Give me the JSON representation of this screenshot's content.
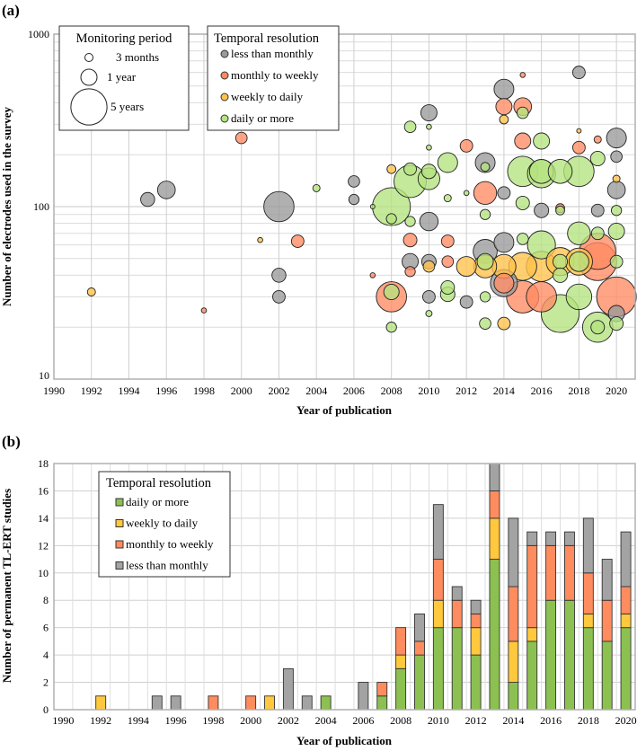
{
  "chart_data": [
    {
      "panel": "(a)",
      "type": "scatter",
      "subtype": "bubble",
      "xlabel": "Year of publication",
      "ylabel": "Number of electrodes used in the survey",
      "xlim": [
        1990,
        2021
      ],
      "ylim": [
        10,
        1000
      ],
      "yscale": "log",
      "xticks": [
        1990,
        1992,
        1994,
        1996,
        1998,
        2000,
        2002,
        2004,
        2006,
        2008,
        2010,
        2012,
        2014,
        2016,
        2018,
        2020
      ],
      "yticks": [
        10,
        100,
        1000
      ],
      "grid": true,
      "size_legend": {
        "title": "Monitoring period",
        "entries": [
          {
            "label": "3 months",
            "years": 0.25
          },
          {
            "label": "1 year",
            "years": 1
          },
          {
            "label": "5 years",
            "years": 5
          }
        ]
      },
      "color_legend": {
        "title": "Temporal resolution",
        "entries": [
          {
            "key": "L",
            "label": "less than monthly",
            "color": "#9a9a9a"
          },
          {
            "key": "M",
            "label": "monthly to weekly",
            "color": "#ff8a63"
          },
          {
            "key": "W",
            "label": "weekly to daily",
            "color": "#ffc24a"
          },
          {
            "key": "D",
            "label": "daily or more",
            "color": "#b5e37f"
          }
        ]
      },
      "point_fields": [
        "year",
        "electrodes",
        "monitoring_years",
        "resolution"
      ],
      "points": [
        [
          1992,
          32,
          0.25,
          "W"
        ],
        [
          1995,
          110,
          0.75,
          "L"
        ],
        [
          1996,
          125,
          1.2,
          "L"
        ],
        [
          1998,
          25,
          0.1,
          "M"
        ],
        [
          2000,
          250,
          0.5,
          "M"
        ],
        [
          2001,
          64,
          0.1,
          "W"
        ],
        [
          2002,
          100,
          3.5,
          "L"
        ],
        [
          2002,
          40,
          0.75,
          "L"
        ],
        [
          2002,
          30,
          0.6,
          "L"
        ],
        [
          2003,
          63,
          0.6,
          "M"
        ],
        [
          2004,
          128,
          0.2,
          "D"
        ],
        [
          2006,
          140,
          0.5,
          "L"
        ],
        [
          2006,
          110,
          0.4,
          "L"
        ],
        [
          2007,
          40,
          0.1,
          "M"
        ],
        [
          2007,
          100,
          0.05,
          "D"
        ],
        [
          2008,
          100,
          5.5,
          "D"
        ],
        [
          2008,
          165,
          0.3,
          "W"
        ],
        [
          2008,
          85,
          0.4,
          "D"
        ],
        [
          2008,
          30,
          3.5,
          "M"
        ],
        [
          2008,
          32,
          0.9,
          "D"
        ],
        [
          2008,
          20,
          0.4,
          "D"
        ],
        [
          2009,
          290,
          0.5,
          "D"
        ],
        [
          2009,
          165,
          0.6,
          "D"
        ],
        [
          2009,
          140,
          4,
          "D"
        ],
        [
          2009,
          82,
          0.4,
          "D"
        ],
        [
          2009,
          64,
          0.7,
          "M"
        ],
        [
          2009,
          48,
          1,
          "L"
        ],
        [
          2009,
          42,
          0.4,
          "M"
        ],
        [
          2010,
          350,
          1,
          "L"
        ],
        [
          2010,
          290,
          0.1,
          "D"
        ],
        [
          2010,
          220,
          0.1,
          "D"
        ],
        [
          2010,
          160,
          0.8,
          "D"
        ],
        [
          2010,
          145,
          1.8,
          "D"
        ],
        [
          2010,
          82,
          1.3,
          "L"
        ],
        [
          2010,
          48,
          0.8,
          "L"
        ],
        [
          2010,
          45,
          0.5,
          "W"
        ],
        [
          2010,
          30,
          0.6,
          "L"
        ],
        [
          2010,
          24,
          0.15,
          "D"
        ],
        [
          2011,
          180,
          1.5,
          "D"
        ],
        [
          2011,
          112,
          0.2,
          "D"
        ],
        [
          2011,
          63,
          0.6,
          "M"
        ],
        [
          2011,
          48,
          0.5,
          "M"
        ],
        [
          2011,
          34,
          0.7,
          "D"
        ],
        [
          2011,
          31,
          0.8,
          "D"
        ],
        [
          2012,
          225,
          0.6,
          "M"
        ],
        [
          2012,
          120,
          0.1,
          "D"
        ],
        [
          2012,
          45,
          1.5,
          "W"
        ],
        [
          2012,
          28,
          0.6,
          "L"
        ],
        [
          2013,
          180,
          1.5,
          "L"
        ],
        [
          2013,
          170,
          0.3,
          "D"
        ],
        [
          2013,
          120,
          2,
          "M"
        ],
        [
          2013,
          90,
          0.4,
          "D"
        ],
        [
          2013,
          55,
          2.2,
          "L"
        ],
        [
          2013,
          45,
          2,
          "W"
        ],
        [
          2013,
          48,
          1,
          "D"
        ],
        [
          2013,
          30,
          0.4,
          "D"
        ],
        [
          2013,
          21,
          0.5,
          "D"
        ],
        [
          2014,
          480,
          1.5,
          "L"
        ],
        [
          2014,
          380,
          1,
          "M"
        ],
        [
          2014,
          320,
          0.3,
          "W"
        ],
        [
          2014,
          120,
          0.6,
          "L"
        ],
        [
          2014,
          62,
          1.5,
          "L"
        ],
        [
          2014,
          45,
          2.2,
          "W"
        ],
        [
          2014,
          36,
          2.8,
          "L"
        ],
        [
          2014,
          36,
          1.5,
          "M"
        ],
        [
          2014,
          21,
          0.6,
          "W"
        ],
        [
          2015,
          580,
          0.1,
          "M"
        ],
        [
          2015,
          380,
          1.2,
          "M"
        ],
        [
          2015,
          350,
          0.5,
          "D"
        ],
        [
          2015,
          240,
          1,
          "M"
        ],
        [
          2015,
          160,
          3.5,
          "D"
        ],
        [
          2015,
          105,
          0.7,
          "D"
        ],
        [
          2015,
          65,
          0.5,
          "D"
        ],
        [
          2015,
          45,
          3,
          "W"
        ],
        [
          2015,
          30,
          4,
          "M"
        ],
        [
          2016,
          240,
          1,
          "D"
        ],
        [
          2016,
          160,
          2.2,
          "D"
        ],
        [
          2016,
          155,
          3,
          "D"
        ],
        [
          2016,
          95,
          0.8,
          "L"
        ],
        [
          2016,
          60,
          3,
          "D"
        ],
        [
          2016,
          45,
          3.5,
          "W"
        ],
        [
          2016,
          30,
          3.5,
          "M"
        ],
        [
          2017,
          160,
          2.2,
          "D"
        ],
        [
          2017,
          98,
          0.3,
          "M"
        ],
        [
          2017,
          95,
          0.3,
          "D"
        ],
        [
          2017,
          48,
          3,
          "W"
        ],
        [
          2017,
          48,
          0.8,
          "D"
        ],
        [
          2017,
          40,
          0.8,
          "D"
        ],
        [
          2017,
          24,
          5.5,
          "D"
        ],
        [
          2018,
          600,
          0.6,
          "L"
        ],
        [
          2018,
          275,
          0.05,
          "W"
        ],
        [
          2018,
          220,
          0.6,
          "M"
        ],
        [
          2018,
          160,
          3.5,
          "D"
        ],
        [
          2018,
          70,
          2,
          "D"
        ],
        [
          2018,
          48,
          2.8,
          "W"
        ],
        [
          2018,
          48,
          1.5,
          "D"
        ],
        [
          2018,
          30,
          2.5,
          "D"
        ],
        [
          2019,
          245,
          0.2,
          "M"
        ],
        [
          2019,
          190,
          0.8,
          "D"
        ],
        [
          2019,
          95,
          0.6,
          "L"
        ],
        [
          2019,
          70,
          0.6,
          "D"
        ],
        [
          2019,
          55,
          5,
          "M"
        ],
        [
          2019,
          48,
          5.5,
          "M"
        ],
        [
          2019,
          20,
          3.5,
          "D"
        ],
        [
          2019,
          20,
          0.7,
          "D"
        ],
        [
          2020,
          250,
          1.5,
          "L"
        ],
        [
          2020,
          195,
          0.5,
          "L"
        ],
        [
          2020,
          145,
          0.2,
          "W"
        ],
        [
          2020,
          125,
          1.2,
          "L"
        ],
        [
          2020,
          95,
          0.4,
          "D"
        ],
        [
          2020,
          72,
          1,
          "D"
        ],
        [
          2020,
          48,
          0.6,
          "D"
        ],
        [
          2020,
          30,
          6,
          "M"
        ],
        [
          2020,
          24,
          1,
          "L"
        ],
        [
          2020,
          21,
          0.7,
          "D"
        ]
      ]
    },
    {
      "panel": "(b)",
      "type": "bar",
      "stacked": true,
      "xlabel": "Year of publication",
      "ylabel": "Number of permanent TL-ERT studies",
      "ylim": [
        0,
        18
      ],
      "yticks": [
        0,
        2,
        4,
        6,
        8,
        10,
        12,
        14,
        16,
        18
      ],
      "grid": true,
      "legend": {
        "title": "Temporal resolution",
        "placement": "top-left"
      },
      "categories": [
        1990,
        1991,
        1992,
        1993,
        1994,
        1995,
        1996,
        1997,
        1998,
        1999,
        2000,
        2001,
        2002,
        2003,
        2004,
        2005,
        2006,
        2007,
        2008,
        2009,
        2010,
        2011,
        2012,
        2013,
        2014,
        2015,
        2016,
        2017,
        2018,
        2019,
        2020
      ],
      "xtick_labels": [
        "1990",
        "1992",
        "1994",
        "1996",
        "1998",
        "2000",
        "2002",
        "2004",
        "2006",
        "2008",
        "2010",
        "2012",
        "2014",
        "2016",
        "2018",
        "2020"
      ],
      "series": [
        {
          "name": "daily or more",
          "color": "#8cc152",
          "values": [
            0,
            0,
            0,
            0,
            0,
            0,
            0,
            0,
            0,
            0,
            0,
            0,
            0,
            0,
            1,
            0,
            0,
            1,
            3,
            4,
            6,
            6,
            4,
            11,
            2,
            5,
            8,
            8,
            6,
            5,
            6
          ]
        },
        {
          "name": "weekly to daily",
          "color": "#ffc83d",
          "values": [
            0,
            0,
            1,
            0,
            0,
            0,
            0,
            0,
            0,
            0,
            0,
            1,
            0,
            0,
            0,
            0,
            0,
            0,
            1,
            0,
            2,
            0,
            2,
            3,
            3,
            1,
            0,
            0,
            1,
            0,
            1
          ]
        },
        {
          "name": "monthly to weekly",
          "color": "#ff8c5f",
          "values": [
            0,
            0,
            0,
            0,
            0,
            0,
            0,
            0,
            1,
            0,
            1,
            0,
            0,
            0,
            0,
            0,
            0,
            1,
            2,
            1,
            3,
            2,
            1,
            2,
            4,
            6,
            4,
            4,
            3,
            3,
            2
          ]
        },
        {
          "name": "less than monthly",
          "color": "#a3a3a3",
          "values": [
            0,
            0,
            0,
            0,
            0,
            1,
            1,
            0,
            0,
            0,
            0,
            0,
            3,
            1,
            0,
            0,
            2,
            0,
            0,
            2,
            4,
            1,
            1,
            2,
            5,
            1,
            1,
            1,
            4,
            3,
            4
          ]
        }
      ]
    }
  ]
}
